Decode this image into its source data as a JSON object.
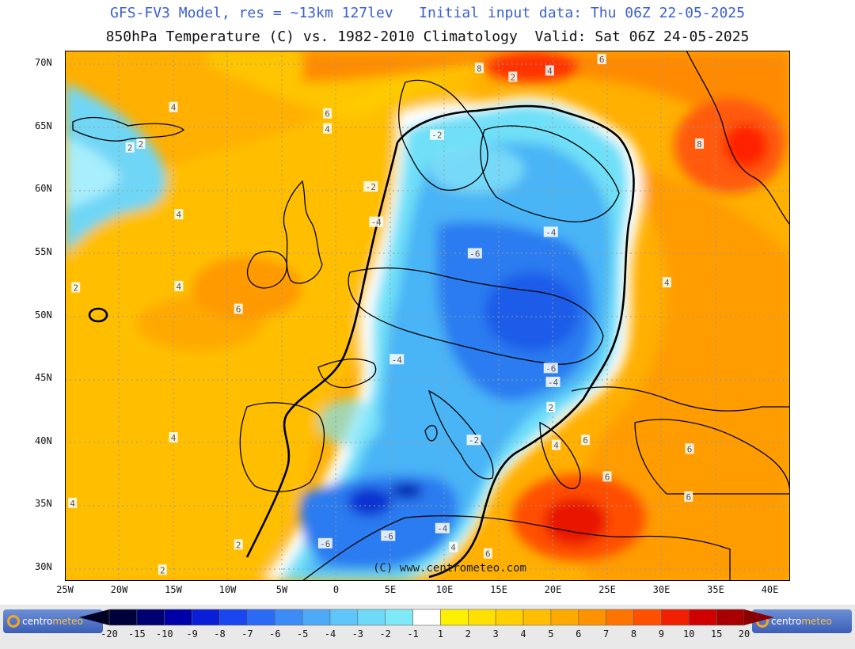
{
  "titles": {
    "line1": "GFS-FV3 Model, res = ~13km 127lev   Initial input data: Thu 06Z 22-05-2025",
    "line2": "850hPa Temperature (C) vs. 1982-2010 Climatology  Valid: Sat 06Z 24-05-2025"
  },
  "watermark": "(C) www.centrometeo.com",
  "logo": {
    "prefix": "centro",
    "suffix": "meteo"
  },
  "lat_labels": [
    "70N",
    "65N",
    "60N",
    "55N",
    "50N",
    "45N",
    "40N",
    "35N",
    "30N"
  ],
  "lon_labels": [
    "25W",
    "20W",
    "15W",
    "10W",
    "5W",
    "0",
    "5E",
    "10E",
    "15E",
    "20E",
    "25E",
    "30E",
    "35E",
    "40E"
  ],
  "colorbar": {
    "labels": [
      "-20",
      "-15",
      "-10",
      "-9",
      "-8",
      "-7",
      "-6",
      "-5",
      "-4",
      "-3",
      "-2",
      "-1",
      "1",
      "2",
      "3",
      "4",
      "5",
      "6",
      "7",
      "8",
      "9",
      "10",
      "15",
      "20"
    ],
    "colors": [
      "#00003a",
      "#000070",
      "#0000a8",
      "#0a1ed8",
      "#1a46f0",
      "#2a6af5",
      "#3c8cf8",
      "#4eaaf8",
      "#5ec6f8",
      "#6edaf8",
      "#7eeaf8",
      "#ffffff",
      "#fff000",
      "#ffe000",
      "#ffd000",
      "#ffbe00",
      "#ffaa00",
      "#ff9200",
      "#ff7400",
      "#ff5000",
      "#f02000",
      "#d00000",
      "#a80000"
    ],
    "arrow_left": "#000022",
    "arrow_right": "#880000"
  },
  "anomaly_labels": [
    {
      "v": "4",
      "lon": -15,
      "lat": 66.5
    },
    {
      "v": "6",
      "lon": -0.8,
      "lat": 66
    },
    {
      "v": "4",
      "lon": -0.8,
      "lat": 64.8
    },
    {
      "v": "2",
      "lon": -18,
      "lat": 63.6
    },
    {
      "v": "2",
      "lon": -19,
      "lat": 63.3
    },
    {
      "v": "4",
      "lon": -14.5,
      "lat": 58
    },
    {
      "v": "4",
      "lon": -14.5,
      "lat": 52.3
    },
    {
      "v": "2",
      "lon": -24,
      "lat": 52.2
    },
    {
      "v": "6",
      "lon": -9,
      "lat": 50.5
    },
    {
      "v": "4",
      "lon": -15,
      "lat": 40.3
    },
    {
      "v": "4",
      "lon": -24.3,
      "lat": 35.1
    },
    {
      "v": "2",
      "lon": -9,
      "lat": 31.8
    },
    {
      "v": "2",
      "lon": -16,
      "lat": 29.8
    },
    {
      "v": "-2",
      "lon": 9.3,
      "lat": 64.3
    },
    {
      "v": "-2",
      "lon": 3.2,
      "lat": 60.2
    },
    {
      "v": "-4",
      "lon": 3.7,
      "lat": 57.4
    },
    {
      "v": "-6",
      "lon": 12.8,
      "lat": 54.9
    },
    {
      "v": "-4",
      "lon": 19.8,
      "lat": 56.6
    },
    {
      "v": "-4",
      "lon": 5.6,
      "lat": 46.5
    },
    {
      "v": "-6",
      "lon": 19.8,
      "lat": 45.8
    },
    {
      "v": "-4",
      "lon": 20,
      "lat": 44.7
    },
    {
      "v": "2",
      "lon": 19.8,
      "lat": 42.7
    },
    {
      "v": "-2",
      "lon": 12.7,
      "lat": 40.1
    },
    {
      "v": "-4",
      "lon": 9.8,
      "lat": 33.1
    },
    {
      "v": "-6",
      "lon": -1,
      "lat": 31.9
    },
    {
      "v": "-6",
      "lon": 4.8,
      "lat": 32.5
    },
    {
      "v": "4",
      "lon": 10.8,
      "lat": 31.6
    },
    {
      "v": "6",
      "lon": 14,
      "lat": 31.1
    },
    {
      "v": "8",
      "lon": 13.2,
      "lat": 69.6
    },
    {
      "v": "2",
      "lon": 16.3,
      "lat": 68.9
    },
    {
      "v": "4",
      "lon": 19.7,
      "lat": 69.4
    },
    {
      "v": "6",
      "lon": 24.5,
      "lat": 70.3
    },
    {
      "v": "8",
      "lon": 33.5,
      "lat": 63.6
    },
    {
      "v": "4",
      "lon": 30.5,
      "lat": 52.6
    },
    {
      "v": "6",
      "lon": 23,
      "lat": 40.1
    },
    {
      "v": "4",
      "lon": 20.3,
      "lat": 39.7
    },
    {
      "v": "6",
      "lon": 32.6,
      "lat": 39.4
    },
    {
      "v": "6",
      "lon": 25,
      "lat": 37.2
    },
    {
      "v": "6",
      "lon": 32.5,
      "lat": 35.6
    }
  ]
}
